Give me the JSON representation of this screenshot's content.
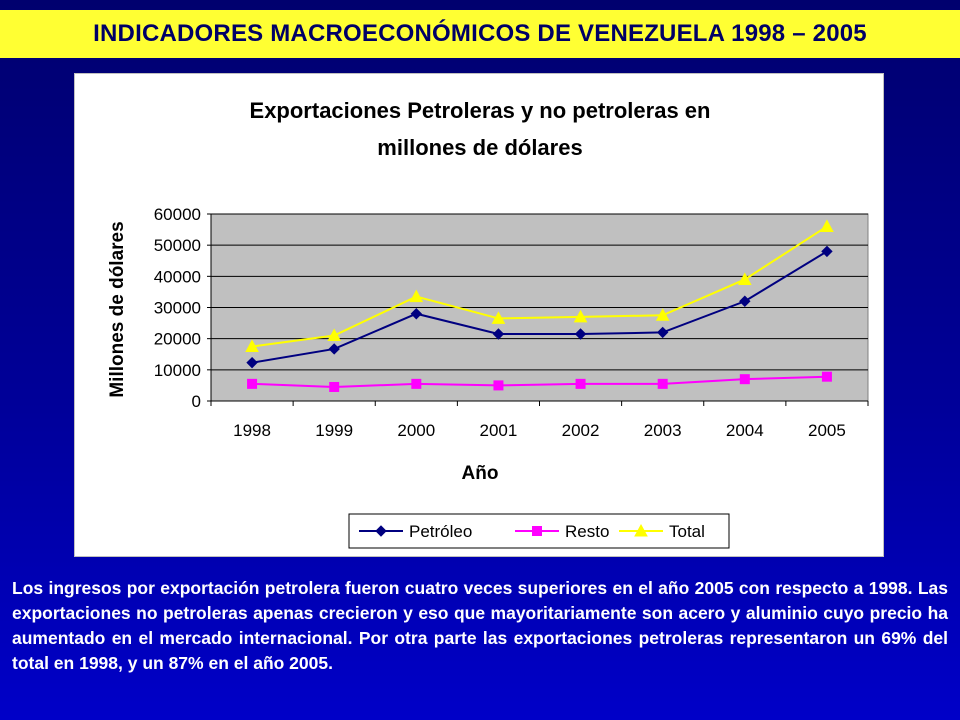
{
  "page": {
    "banner_title": "INDICADORES MACROECONÓMICOS DE VENEZUELA 1998 – 2005",
    "summary": "Los ingresos por exportación petrolera fueron cuatro veces superiores en el año 2005 con respecto a 1998. Las exportaciones no petroleras apenas crecieron y eso que mayoritariamente son acero y aluminio cuyo precio ha aumentado en el mercado internacional. Por otra parte las exportaciones petroleras representaron un 69% del total en 1998, y un 87% en el año 2005."
  },
  "chart_data": {
    "type": "line",
    "title": [
      "Exportaciones Petroleras y no petroleras en",
      "millones de dólares"
    ],
    "xlabel": "Año",
    "ylabel": "Millones de dólares",
    "categories": [
      "1998",
      "1999",
      "2000",
      "2001",
      "2002",
      "2003",
      "2004",
      "2005"
    ],
    "ylim": [
      0,
      60000
    ],
    "yticks": [
      0,
      10000,
      20000,
      30000,
      40000,
      50000,
      60000
    ],
    "grid": true,
    "plot_background": "#c0c0c0",
    "legend_position": "bottom",
    "series": [
      {
        "name": "Petróleo",
        "color": "#000080",
        "marker": "diamond",
        "values": [
          12300,
          16700,
          28000,
          21500,
          21500,
          22000,
          32000,
          48000
        ]
      },
      {
        "name": "Resto",
        "color": "#ff00ff",
        "marker": "square",
        "values": [
          5500,
          4500,
          5500,
          5000,
          5500,
          5500,
          7000,
          7800
        ]
      },
      {
        "name": "Total",
        "color": "#ffff00",
        "marker": "triangle",
        "values": [
          17500,
          21000,
          33500,
          26500,
          27000,
          27500,
          39000,
          56000
        ]
      }
    ]
  }
}
